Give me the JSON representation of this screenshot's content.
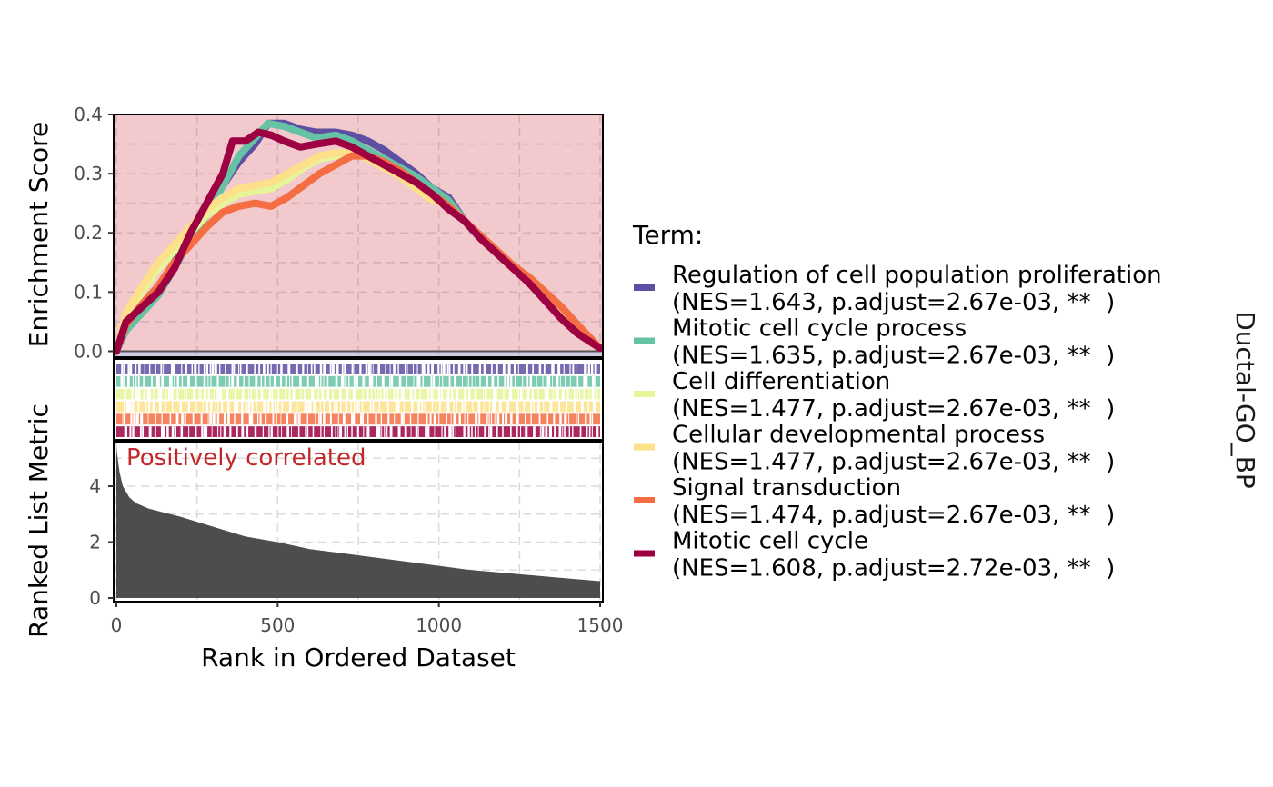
{
  "chart_data": {
    "type": "line",
    "title": "",
    "strip_label": "Ductal-GO_BP",
    "xlabel": "Rank in Ordered Dataset",
    "xlim": [
      0,
      1500
    ],
    "x_ticks": [
      0,
      500,
      1000,
      1500
    ],
    "es_panel": {
      "ylabel": "Enrichment Score",
      "ylim": [
        -0.01,
        0.4
      ],
      "y_ticks": [
        0.0,
        0.1,
        0.2,
        0.3,
        0.4
      ],
      "y_tick_labels": [
        "0.0",
        "0.1",
        "0.2",
        "0.3",
        "0.4"
      ],
      "positive_fill": "#f2c9cc",
      "negative_fill": "#d0cde6",
      "grid": true
    },
    "ranked_panel": {
      "ylabel": "Ranked List Metric",
      "ylim": [
        0,
        5.5
      ],
      "y_ticks": [
        0,
        2,
        4
      ],
      "y_tick_labels": [
        "0",
        "2",
        "4"
      ],
      "annotation": "Positively correlated",
      "annotation_color": "#c0282b",
      "fill_color": "#4d4d4d",
      "x": [
        0,
        5,
        10,
        20,
        40,
        60,
        100,
        150,
        200,
        300,
        400,
        500,
        600,
        700,
        800,
        900,
        1000,
        1100,
        1200,
        1300,
        1400,
        1500
      ],
      "values": [
        5.4,
        4.9,
        4.5,
        4.0,
        3.6,
        3.4,
        3.2,
        3.05,
        2.9,
        2.55,
        2.2,
        2.0,
        1.75,
        1.6,
        1.45,
        1.3,
        1.15,
        1.0,
        0.9,
        0.8,
        0.7,
        0.6
      ]
    },
    "legend": {
      "title": "Term:",
      "placement": "right"
    },
    "series": [
      {
        "name": "Regulation of cell population proliferation",
        "stats": "(NES=1.643, p.adjust=2.67e-03, **  )",
        "color": "#5e4fa2",
        "x": [
          0,
          30,
          80,
          130,
          180,
          230,
          280,
          330,
          380,
          430,
          470,
          520,
          570,
          620,
          680,
          730,
          780,
          830,
          880,
          930,
          980,
          1030,
          1080,
          1130,
          1180,
          1230,
          1280,
          1330,
          1380,
          1430,
          1500
        ],
        "y": [
          0.0,
          0.04,
          0.07,
          0.1,
          0.15,
          0.2,
          0.24,
          0.28,
          0.32,
          0.35,
          0.385,
          0.385,
          0.375,
          0.37,
          0.37,
          0.365,
          0.355,
          0.34,
          0.32,
          0.3,
          0.275,
          0.26,
          0.22,
          0.19,
          0.17,
          0.14,
          0.12,
          0.09,
          0.06,
          0.04,
          0.005
        ]
      },
      {
        "name": "Mitotic cell cycle process",
        "stats": "(NES=1.635, p.adjust=2.67e-03, **  )",
        "color": "#66c2a5",
        "x": [
          0,
          30,
          80,
          130,
          180,
          230,
          280,
          330,
          380,
          430,
          470,
          520,
          570,
          620,
          680,
          730,
          780,
          830,
          880,
          930,
          980,
          1030,
          1080,
          1130,
          1180,
          1230,
          1280,
          1330,
          1380,
          1430,
          1500
        ],
        "y": [
          0.0,
          0.035,
          0.065,
          0.095,
          0.14,
          0.19,
          0.23,
          0.28,
          0.33,
          0.36,
          0.385,
          0.38,
          0.37,
          0.36,
          0.365,
          0.355,
          0.34,
          0.325,
          0.31,
          0.295,
          0.275,
          0.255,
          0.22,
          0.19,
          0.165,
          0.14,
          0.12,
          0.09,
          0.06,
          0.035,
          0.005
        ]
      },
      {
        "name": "Cell differentiation",
        "stats": "(NES=1.477, p.adjust=2.67e-03, **  )",
        "color": "#e6f598",
        "x": [
          0,
          30,
          80,
          130,
          180,
          230,
          280,
          330,
          380,
          430,
          480,
          530,
          580,
          630,
          680,
          730,
          780,
          830,
          880,
          930,
          980,
          1030,
          1080,
          1130,
          1180,
          1230,
          1280,
          1330,
          1380,
          1430,
          1500
        ],
        "y": [
          0.0,
          0.06,
          0.1,
          0.14,
          0.17,
          0.2,
          0.23,
          0.25,
          0.265,
          0.27,
          0.275,
          0.29,
          0.31,
          0.325,
          0.33,
          0.335,
          0.325,
          0.31,
          0.295,
          0.275,
          0.255,
          0.245,
          0.22,
          0.19,
          0.165,
          0.14,
          0.115,
          0.09,
          0.065,
          0.04,
          0.005
        ]
      },
      {
        "name": "Cellular developmental process",
        "stats": "(NES=1.477, p.adjust=2.67e-03, **  )",
        "color": "#fee08b",
        "x": [
          0,
          30,
          80,
          130,
          180,
          230,
          280,
          330,
          380,
          430,
          480,
          530,
          580,
          630,
          680,
          730,
          780,
          830,
          880,
          930,
          980,
          1030,
          1080,
          1130,
          1180,
          1230,
          1280,
          1330,
          1380,
          1430,
          1500
        ],
        "y": [
          0.0,
          0.065,
          0.11,
          0.15,
          0.18,
          0.21,
          0.24,
          0.26,
          0.275,
          0.28,
          0.285,
          0.3,
          0.315,
          0.33,
          0.335,
          0.335,
          0.325,
          0.31,
          0.295,
          0.275,
          0.255,
          0.245,
          0.22,
          0.19,
          0.165,
          0.14,
          0.115,
          0.09,
          0.065,
          0.04,
          0.005
        ]
      },
      {
        "name": "Signal transduction",
        "stats": "(NES=1.474, p.adjust=2.67e-03, **  )",
        "color": "#f46d43",
        "x": [
          0,
          30,
          80,
          130,
          180,
          230,
          280,
          330,
          380,
          430,
          480,
          530,
          580,
          630,
          680,
          730,
          780,
          830,
          880,
          930,
          980,
          1030,
          1080,
          1130,
          1180,
          1230,
          1280,
          1330,
          1380,
          1430,
          1500
        ],
        "y": [
          0.0,
          0.045,
          0.08,
          0.11,
          0.15,
          0.18,
          0.21,
          0.235,
          0.245,
          0.25,
          0.245,
          0.26,
          0.28,
          0.3,
          0.315,
          0.33,
          0.33,
          0.32,
          0.305,
          0.285,
          0.265,
          0.245,
          0.22,
          0.195,
          0.17,
          0.145,
          0.125,
          0.1,
          0.075,
          0.045,
          0.005
        ]
      },
      {
        "name": "Mitotic cell cycle",
        "stats": "(NES=1.608, p.adjust=2.72e-03, **  )",
        "color": "#9e0142",
        "x": [
          0,
          30,
          80,
          130,
          180,
          230,
          280,
          330,
          360,
          400,
          440,
          480,
          520,
          570,
          620,
          680,
          730,
          780,
          830,
          880,
          930,
          980,
          1030,
          1080,
          1130,
          1180,
          1230,
          1280,
          1330,
          1380,
          1430,
          1500
        ],
        "y": [
          0.0,
          0.05,
          0.075,
          0.1,
          0.14,
          0.2,
          0.25,
          0.3,
          0.355,
          0.355,
          0.37,
          0.365,
          0.355,
          0.345,
          0.35,
          0.355,
          0.345,
          0.33,
          0.315,
          0.3,
          0.285,
          0.265,
          0.24,
          0.22,
          0.19,
          0.165,
          0.14,
          0.115,
          0.085,
          0.055,
          0.03,
          0.005
        ]
      }
    ]
  }
}
